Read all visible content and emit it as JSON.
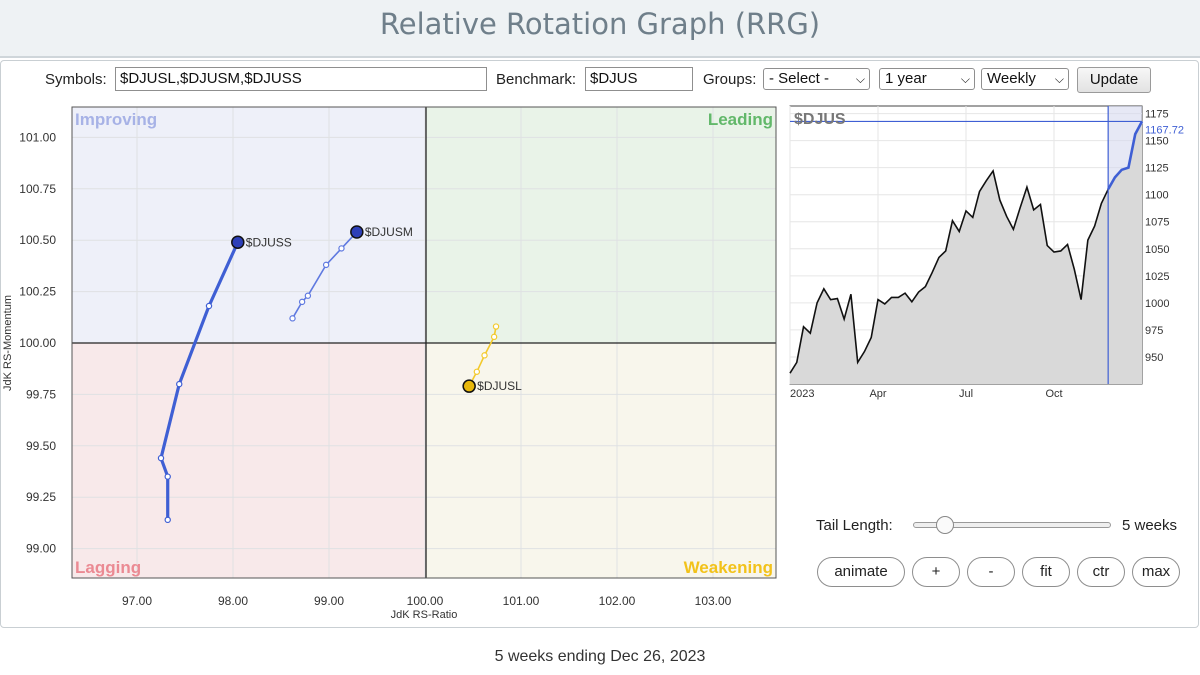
{
  "page": {
    "title": "Relative Rotation Graph (RRG)",
    "footer": "5 weeks ending Dec 26, 2023"
  },
  "controls": {
    "symbols_label": "Symbols:",
    "symbols_value": "$DJUSL,$DJUSM,$DJUSS",
    "benchmark_label": "Benchmark:",
    "benchmark_value": "$DJUS",
    "groups_label": "Groups:",
    "groups_value": "- Select -",
    "period_value": "1 year",
    "interval_value": "Weekly",
    "update_label": "Update"
  },
  "rrg": {
    "quadrants": {
      "improving": {
        "label": "Improving",
        "bg": "#eef0f9",
        "text": "#a7b2e6"
      },
      "leading": {
        "label": "Leading",
        "bg": "#e9f3e8",
        "text": "#62b86a"
      },
      "lagging": {
        "label": "Lagging",
        "bg": "#f8e9ea",
        "text": "#eb8a93"
      },
      "weakening": {
        "label": "Weakening",
        "bg": "#f8f6ec",
        "text": "#f2c21a"
      }
    },
    "x_axis": {
      "label": "JdK RS-Ratio",
      "ticks": [
        "97.00",
        "98.00",
        "99.00",
        "100.00",
        "101.00",
        "102.00",
        "103.00"
      ]
    },
    "y_axis": {
      "label": "JdK RS-Momentum",
      "ticks": [
        "101.00",
        "100.75",
        "100.50",
        "100.25",
        "100.00",
        "99.75",
        "99.50",
        "99.25",
        "99.00"
      ]
    },
    "series": [
      {
        "name": "$DJUSS",
        "color": "#3f5fd4",
        "head_color": "#2d3fb8",
        "width": 3.2,
        "points": [
          [
            97.32,
            99.14
          ],
          [
            97.32,
            99.35
          ],
          [
            97.25,
            99.44
          ],
          [
            97.44,
            99.8
          ],
          [
            97.75,
            100.18
          ],
          [
            98.05,
            100.49
          ]
        ]
      },
      {
        "name": "$DJUSM",
        "color": "#5f79e0",
        "head_color": "#2d3fb8",
        "width": 1.6,
        "points": [
          [
            98.62,
            100.12
          ],
          [
            98.72,
            100.2
          ],
          [
            98.78,
            100.23
          ],
          [
            98.97,
            100.38
          ],
          [
            99.13,
            100.46
          ],
          [
            99.29,
            100.54
          ]
        ]
      },
      {
        "name": "$DJUSL",
        "color": "#f3c92b",
        "head_color": "#e8b80c",
        "width": 1.6,
        "points": [
          [
            100.74,
            100.08
          ],
          [
            100.72,
            100.03
          ],
          [
            100.62,
            99.94
          ],
          [
            100.54,
            99.86
          ],
          [
            100.46,
            99.79
          ]
        ]
      }
    ]
  },
  "price_chart": {
    "symbol": "$DJUS",
    "last_value": "1167.72",
    "last": 1167.72,
    "ymin": 925,
    "ymax": 1182,
    "y_ticks": [
      "1175",
      "1150",
      "1125",
      "1100",
      "1075",
      "1050",
      "1025",
      "1000",
      "975",
      "950"
    ],
    "x_ticks": [
      "2023",
      "Apr",
      "Jul",
      "Oct"
    ],
    "values": [
      935,
      945,
      978,
      972,
      1000,
      1013,
      1003,
      1004,
      985,
      1008,
      945,
      955,
      968,
      1003,
      999,
      1005,
      1005,
      1009,
      1001,
      1010,
      1015,
      1028,
      1042,
      1048,
      1076,
      1066,
      1085,
      1079,
      1103,
      1113,
      1122,
      1095,
      1080,
      1068,
      1088,
      1107,
      1086,
      1091,
      1053,
      1047,
      1048,
      1054,
      1031,
      1003,
      1058,
      1071,
      1092,
      1105,
      1116,
      1123,
      1125,
      1156,
      1167.72
    ]
  },
  "tail": {
    "label": "Tail Length:",
    "value": "5 weeks"
  },
  "buttons": {
    "animate": "animate",
    "plus": "+",
    "minus": "-",
    "fit": "fit",
    "ctr": "ctr",
    "max": "max"
  }
}
